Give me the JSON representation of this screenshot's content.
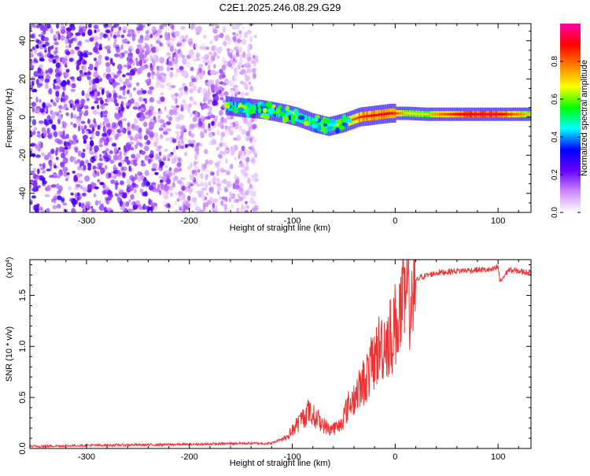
{
  "page": {
    "title": "C2E1.2025.246.08.29.G29"
  },
  "chart_data": [
    {
      "type": "heatmap",
      "title": "C2E1.2025.246.08.29.G29",
      "xlabel": "Height of straight line (km)",
      "ylabel": "Frequency (Hz)",
      "xlim": [
        -355,
        132
      ],
      "ylim": [
        -50,
        49
      ],
      "x_ticks": [
        -300,
        -200,
        -100,
        0,
        100
      ],
      "y_ticks": [
        -40,
        -20,
        0,
        20,
        40
      ],
      "colorbar": {
        "label": "Normalized spectral amplitude",
        "range": [
          0,
          1
        ],
        "ticks": [
          "0.0",
          "0.2",
          "0.4",
          "0.6",
          "0.8"
        ],
        "colors": [
          "#ffffff",
          "#cc88ff",
          "#6600ff",
          "#0000ff",
          "#00ffff",
          "#00ff00",
          "#ffff00",
          "#ff8000",
          "#ff0000",
          "#ff00aa"
        ]
      },
      "features": {
        "noise_region_x": [
          -355,
          -135
        ],
        "signal_track": [
          {
            "x": -165,
            "y": 6,
            "amp": 0.45
          },
          {
            "x": -150,
            "y": 5,
            "amp": 0.45
          },
          {
            "x": -130,
            "y": 4,
            "amp": 0.4
          },
          {
            "x": -110,
            "y": 2,
            "amp": 0.45
          },
          {
            "x": -95,
            "y": 0,
            "amp": 0.5
          },
          {
            "x": -80,
            "y": -3,
            "amp": 0.45
          },
          {
            "x": -65,
            "y": -5,
            "amp": 0.5
          },
          {
            "x": -50,
            "y": -3,
            "amp": 0.65
          },
          {
            "x": -35,
            "y": 0,
            "amp": 0.75
          },
          {
            "x": -20,
            "y": 1,
            "amp": 0.8
          },
          {
            "x": -5,
            "y": 2,
            "amp": 0.8
          },
          {
            "x": 10,
            "y": 2,
            "amp": 0.6
          },
          {
            "x": 30,
            "y": 1.5,
            "amp": 0.6
          },
          {
            "x": 60,
            "y": 1.5,
            "amp": 0.8
          },
          {
            "x": 95,
            "y": 1.5,
            "amp": 0.85
          },
          {
            "x": 132,
            "y": 1.5,
            "amp": 0.6
          }
        ]
      }
    },
    {
      "type": "line",
      "xlabel": "Height of straight line (km)",
      "ylabel": "SNR (10 * v/v)",
      "y_multiplier": "(x10",
      "y_multiplier_exp": "4",
      "xlim": [
        -355,
        132
      ],
      "ylim": [
        0,
        1.85
      ],
      "x_ticks": [
        -300,
        -200,
        -100,
        0,
        100
      ],
      "y_ticks": [
        "0.0",
        "0.5",
        "1.0",
        "1.5"
      ],
      "color": "#ee3333",
      "series": [
        {
          "x": [
            -355,
            -300,
            -200,
            -150,
            -120,
            -105,
            -95,
            -85,
            -75,
            -65,
            -55,
            -45,
            -35,
            -25,
            -15,
            -5,
            5,
            10,
            15,
            25,
            40,
            60,
            80,
            95,
            100,
            102,
            110,
            132
          ],
          "y": [
            0.02,
            0.03,
            0.04,
            0.05,
            0.05,
            0.12,
            0.25,
            0.38,
            0.3,
            0.2,
            0.22,
            0.45,
            0.6,
            0.8,
            1.05,
            1.15,
            1.4,
            1.5,
            1.6,
            1.68,
            1.72,
            1.74,
            1.75,
            1.75,
            1.78,
            1.63,
            1.75,
            1.72
          ]
        }
      ]
    }
  ]
}
